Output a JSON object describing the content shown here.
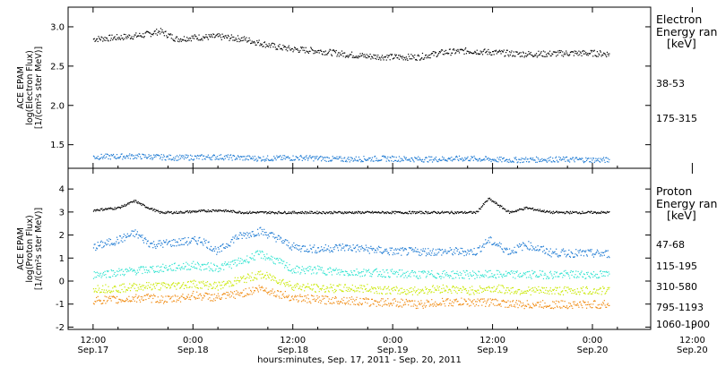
{
  "chart_data": [
    {
      "type": "scatter",
      "ylabel_lines": [
        "ACE EPAM",
        "log(Electron Flux)",
        "[1/(cm²s ster MeV)]"
      ],
      "ylim": [
        1.2,
        3.25
      ],
      "yticks": [
        1.5,
        2.0,
        2.5,
        3.0
      ],
      "ytick_labels": [
        "1.5",
        "2.0",
        "2.5",
        "3.0"
      ],
      "legend_title_lines": [
        "Electron",
        "Energy ranges",
        "[keV]"
      ],
      "series": [
        {
          "name": "38-53",
          "color": "#000000",
          "x": [
            0,
            6,
            12,
            16,
            20,
            24,
            30,
            36,
            40,
            44,
            48,
            54,
            60,
            66,
            72,
            78,
            84,
            90,
            96,
            102,
            108,
            114,
            120,
            124
          ],
          "y": [
            2.85,
            2.87,
            2.9,
            2.95,
            2.85,
            2.87,
            2.88,
            2.85,
            2.8,
            2.75,
            2.72,
            2.7,
            2.66,
            2.63,
            2.62,
            2.62,
            2.68,
            2.7,
            2.68,
            2.66,
            2.66,
            2.67,
            2.67,
            2.66
          ]
        },
        {
          "name": "175-315",
          "color": "#1a78d2",
          "x": [
            0,
            10,
            20,
            30,
            40,
            50,
            60,
            70,
            80,
            90,
            100,
            110,
            124
          ],
          "y": [
            1.35,
            1.36,
            1.34,
            1.35,
            1.33,
            1.34,
            1.32,
            1.33,
            1.32,
            1.33,
            1.31,
            1.32,
            1.31
          ]
        }
      ]
    },
    {
      "type": "scatter",
      "ylabel_lines": [
        "ACE EPAM",
        "log(Proton Flux)",
        "[1/(cm²s ster MeV)]"
      ],
      "ylim": [
        -2.1,
        4.9
      ],
      "yticks": [
        -2,
        -1,
        0,
        1,
        2,
        3,
        4
      ],
      "ytick_labels": [
        "-2",
        "-1",
        "0",
        "1",
        "2",
        "3",
        "4"
      ],
      "legend_title_lines": [
        "Proton",
        "Energy ranges",
        "[keV]"
      ],
      "series": [
        {
          "name": "47-68",
          "color": "#000000",
          "x": [
            0,
            6,
            10,
            12,
            16,
            20,
            30,
            36,
            40,
            48,
            60,
            72,
            84,
            92,
            95,
            100,
            104,
            110,
            124
          ],
          "y": [
            3.1,
            3.2,
            3.5,
            3.3,
            3.0,
            3.0,
            3.1,
            3.0,
            3.0,
            3.0,
            3.0,
            3.0,
            3.0,
            3.0,
            3.6,
            3.0,
            3.2,
            3.0,
            3.0
          ]
        },
        {
          "name": "115-195",
          "color": "#1a78d2",
          "x": [
            0,
            6,
            10,
            14,
            20,
            26,
            30,
            34,
            40,
            44,
            48,
            54,
            60,
            66,
            72,
            78,
            84,
            92,
            95,
            100,
            104,
            110,
            124
          ],
          "y": [
            1.5,
            1.8,
            2.1,
            1.6,
            1.7,
            1.8,
            1.3,
            1.9,
            2.2,
            1.9,
            1.5,
            1.4,
            1.5,
            1.4,
            1.3,
            1.3,
            1.3,
            1.3,
            1.8,
            1.3,
            1.6,
            1.25,
            1.2
          ]
        },
        {
          "name": "310-580",
          "color": "#2fe3d0",
          "x": [
            0,
            6,
            12,
            18,
            24,
            30,
            36,
            40,
            44,
            48,
            54,
            60,
            66,
            72,
            78,
            84,
            90,
            96,
            102,
            108,
            114,
            124
          ],
          "y": [
            0.3,
            0.4,
            0.5,
            0.6,
            0.7,
            0.6,
            0.9,
            1.2,
            0.9,
            0.5,
            0.5,
            0.4,
            0.4,
            0.35,
            0.3,
            0.3,
            0.3,
            0.3,
            0.3,
            0.3,
            0.3,
            0.3
          ]
        },
        {
          "name": "795-1193",
          "color": "#c9e800",
          "x": [
            0,
            6,
            12,
            18,
            24,
            30,
            36,
            40,
            44,
            48,
            54,
            60,
            66,
            72,
            78,
            84,
            90,
            96,
            102,
            108,
            114,
            124
          ],
          "y": [
            -0.3,
            -0.3,
            -0.2,
            -0.2,
            -0.1,
            -0.2,
            0.1,
            0.3,
            0.1,
            -0.2,
            -0.3,
            -0.3,
            -0.3,
            -0.4,
            -0.4,
            -0.3,
            -0.4,
            -0.3,
            -0.4,
            -0.4,
            -0.4,
            -0.4
          ]
        },
        {
          "name": "1060-1900",
          "color": "#f08a10",
          "x": [
            0,
            6,
            12,
            18,
            24,
            30,
            36,
            40,
            44,
            48,
            54,
            60,
            66,
            72,
            78,
            84,
            90,
            96,
            102,
            108,
            114,
            124
          ],
          "y": [
            -0.8,
            -0.8,
            -0.7,
            -0.8,
            -0.6,
            -0.7,
            -0.5,
            -0.3,
            -0.5,
            -0.7,
            -0.8,
            -0.8,
            -0.9,
            -0.9,
            -1.0,
            -0.9,
            -0.9,
            -0.9,
            -1.0,
            -1.0,
            -1.0,
            -1.0
          ]
        }
      ]
    }
  ],
  "x_axis": {
    "xlim": [
      -6,
      134
    ],
    "ticks": [
      {
        "x": 0,
        "time": "12:00",
        "date": "Sep.17"
      },
      {
        "x": 24,
        "time": "0:00",
        "date": "Sep.18"
      },
      {
        "x": 48,
        "time": "12:00",
        "date": "Sep.18"
      },
      {
        "x": 72,
        "time": "0:00",
        "date": "Sep.19"
      },
      {
        "x": 96,
        "time": "12:00",
        "date": "Sep.19"
      },
      {
        "x": 120,
        "time": "0:00",
        "date": "Sep.20"
      },
      {
        "x": 144,
        "time": "12:00",
        "date": "Sep.20"
      }
    ],
    "label": "hours:minutes, Sep. 17, 2011 - Sep. 20, 2011"
  }
}
